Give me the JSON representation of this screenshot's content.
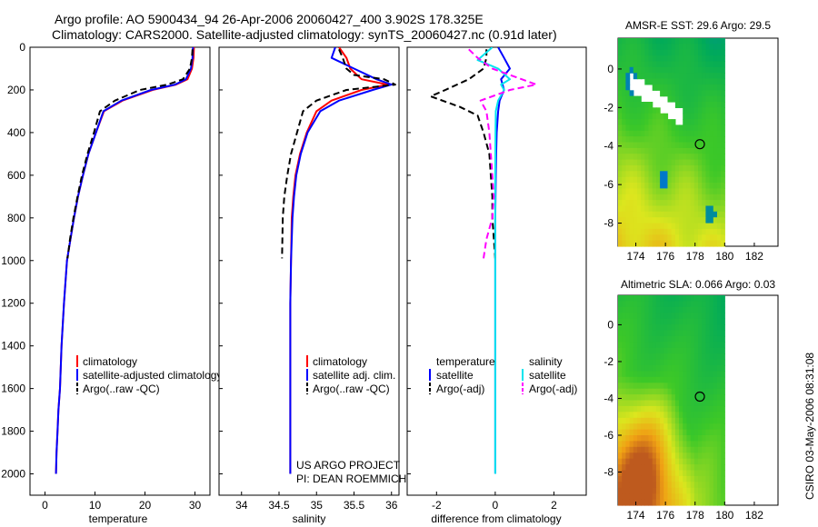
{
  "header": {
    "line1": "Argo profile: AO 5900434_94 26-Apr-2006 20060427_400 3.902S 178.325E",
    "line2": "Climatology: CARS2000. Satellite-adjusted climatology: synTS_20060427.nc (0.91d later)"
  },
  "chart_data": [
    {
      "type": "line",
      "name": "temperature-profile",
      "xlabel": "temperature",
      "ylabel": "",
      "xlim": [
        -3,
        33
      ],
      "ylim": [
        2100,
        0
      ],
      "xticks": [
        0,
        10,
        20,
        30
      ],
      "yticks": [
        0,
        200,
        400,
        600,
        800,
        1000,
        1200,
        1400,
        1600,
        1800,
        2000
      ],
      "legend": [
        "climatology",
        "satellite-adjusted climatology",
        "Argo(..raw -QC)"
      ],
      "series": [
        {
          "name": "climatology",
          "color": "#ff0000",
          "style": "solid",
          "x": [
            29.8,
            29.7,
            29.4,
            28.5,
            26.2,
            21.5,
            15.5,
            11.8,
            10.2,
            8.7,
            7.6,
            6.6,
            5.8,
            5.1,
            4.4,
            3.8,
            3.3,
            3.0,
            2.7,
            2.5,
            2.3,
            2.2
          ],
          "y": [
            0,
            50,
            100,
            150,
            175,
            200,
            250,
            300,
            400,
            500,
            600,
            700,
            800,
            900,
            1000,
            1200,
            1400,
            1600,
            1700,
            1800,
            1900,
            2000
          ]
        },
        {
          "name": "satellite-adjusted climatology",
          "color": "#0000ff",
          "style": "solid",
          "x": [
            29.6,
            29.5,
            29.2,
            28.2,
            26.0,
            21.2,
            15.3,
            11.7,
            10.2,
            8.7,
            7.6,
            6.6,
            5.8,
            5.1,
            4.4,
            3.8,
            3.3,
            3.0,
            2.7,
            2.5,
            2.3,
            2.2
          ],
          "y": [
            0,
            50,
            100,
            150,
            175,
            200,
            250,
            300,
            400,
            500,
            600,
            700,
            800,
            900,
            1000,
            1200,
            1400,
            1600,
            1700,
            1800,
            1900,
            2000
          ]
        },
        {
          "name": "Argo(..raw -QC)",
          "color": "#000000",
          "style": "dashed",
          "x": [
            29.5,
            29.4,
            29.0,
            27.6,
            24.5,
            19.0,
            14.0,
            11.0,
            9.8,
            8.5,
            7.4,
            6.5,
            5.7,
            5.0,
            4.5
          ],
          "y": [
            10,
            50,
            100,
            150,
            175,
            200,
            250,
            300,
            400,
            500,
            600,
            700,
            800,
            900,
            990
          ]
        }
      ]
    },
    {
      "type": "line",
      "name": "salinity-profile",
      "xlabel": "salinity",
      "ylabel": "",
      "xlim": [
        33.7,
        36.1
      ],
      "ylim": [
        2100,
        0
      ],
      "xticks": [
        34,
        34.5,
        35,
        35.5,
        36
      ],
      "xticklabels": [
        "34",
        "34.5",
        "35",
        "35.5",
        "36"
      ],
      "legend": [
        "climatology",
        "satellite adj. clim.",
        "Argo(..raw -QC)"
      ],
      "series": [
        {
          "name": "climatology",
          "color": "#ff0000",
          "style": "solid",
          "x": [
            35.3,
            35.4,
            35.45,
            35.6,
            35.95,
            35.6,
            35.2,
            35.0,
            34.87,
            34.78,
            34.72,
            34.69,
            34.67,
            34.66,
            34.65,
            34.65,
            34.65
          ],
          "y": [
            0,
            50,
            100,
            150,
            175,
            200,
            250,
            300,
            400,
            500,
            600,
            700,
            800,
            1000,
            1200,
            1600,
            2000
          ]
        },
        {
          "name": "satellite adj. clim.",
          "color": "#0000ff",
          "style": "solid",
          "x": [
            35.25,
            35.2,
            35.5,
            35.8,
            36.0,
            35.75,
            35.3,
            35.05,
            34.88,
            34.79,
            34.73,
            34.7,
            34.68,
            34.66,
            34.65,
            34.65,
            34.65
          ],
          "y": [
            0,
            50,
            100,
            150,
            175,
            200,
            250,
            300,
            400,
            500,
            600,
            700,
            800,
            1000,
            1200,
            1600,
            2000
          ]
        },
        {
          "name": "Argo(..raw -QC)",
          "color": "#000000",
          "style": "dashed",
          "x": [
            35.3,
            35.35,
            35.4,
            35.5,
            35.9,
            36.05,
            35.4,
            35.0,
            34.82,
            34.74,
            34.66,
            34.61,
            34.57,
            34.55,
            34.54
          ],
          "y": [
            10,
            50,
            100,
            130,
            150,
            175,
            200,
            250,
            300,
            400,
            500,
            600,
            700,
            800,
            990
          ]
        }
      ]
    },
    {
      "type": "line",
      "name": "difference-from-climatology",
      "xlabel": "difference from climatology",
      "ylabel": "",
      "xlim": [
        -3,
        3.1
      ],
      "ylim": [
        2100,
        0
      ],
      "xticks": [
        -2,
        0,
        2
      ],
      "legend_headers": [
        "temperature",
        "salinity"
      ],
      "legend": [
        "satellite",
        "Argo(-adj)",
        "satellite",
        "Argo(-adj)"
      ],
      "series": [
        {
          "name": "temperature satellite",
          "color": "#0000ff",
          "style": "solid",
          "x": [
            0.1,
            0.3,
            0.5,
            0.2,
            0.3,
            0.15,
            0.1,
            0.05,
            0.03,
            0.02,
            0.0,
            0.0,
            0.0,
            0.0
          ],
          "y": [
            0,
            50,
            100,
            150,
            200,
            250,
            300,
            400,
            500,
            600,
            800,
            1000,
            1500,
            2000
          ]
        },
        {
          "name": "temperature Argo(-adj)",
          "color": "#000000",
          "style": "dashed",
          "x": [
            -0.3,
            -0.3,
            -0.4,
            -0.9,
            -1.7,
            -2.2,
            -1.2,
            -0.6,
            -0.4,
            -0.2,
            -0.15,
            -0.1,
            -0.1,
            0.0
          ],
          "y": [
            10,
            50,
            100,
            150,
            200,
            230,
            280,
            320,
            400,
            500,
            600,
            700,
            800,
            990
          ]
        },
        {
          "name": "salinity satellite",
          "color": "#00e5ee",
          "style": "solid",
          "x": [
            -0.1,
            -0.6,
            0.1,
            0.5,
            0.2,
            0.3,
            0.1,
            0.02,
            0.01,
            0.0,
            0.0,
            0.0,
            0.0
          ],
          "y": [
            0,
            60,
            100,
            150,
            175,
            200,
            250,
            300,
            400,
            600,
            1000,
            1500,
            2000
          ]
        },
        {
          "name": "salinity Argo(-adj)",
          "color": "#ff00ff",
          "style": "dashed",
          "x": [
            -0.9,
            -0.6,
            -0.1,
            0.9,
            1.4,
            0.5,
            -0.5,
            -0.3,
            -0.2,
            -0.1,
            -0.05,
            -0.1,
            -0.3,
            -0.4
          ],
          "y": [
            10,
            50,
            100,
            150,
            175,
            200,
            250,
            300,
            400,
            600,
            700,
            800,
            900,
            990
          ]
        }
      ]
    },
    {
      "type": "heatmap",
      "name": "amsre-sst-map",
      "title": "AMSR-E SST: 29.6 Argo: 29.5",
      "xlim": [
        172.8,
        183.6
      ],
      "ylim": [
        -9.2,
        1.6
      ],
      "xticks": [
        174,
        176,
        178,
        180,
        182
      ],
      "yticks": [
        0,
        -2,
        -4,
        -6,
        -8
      ],
      "data_extent_lon": [
        172.8,
        180
      ],
      "argo_lon": 178.325,
      "argo_lat": -3.902
    },
    {
      "type": "heatmap",
      "name": "altimetric-sla-map",
      "title": "Altimetric SLA: 0.066 Argo: 0.03",
      "xlim": [
        172.8,
        183.6
      ],
      "ylim": [
        -9.8,
        1.6
      ],
      "xticks": [
        174,
        176,
        178,
        180,
        182
      ],
      "yticks": [
        0,
        -2,
        -4,
        -6,
        -8
      ],
      "data_extent_lon": [
        172.8,
        180
      ],
      "argo_lon": 178.325,
      "argo_lat": -3.902
    }
  ],
  "credits": {
    "project": "US ARGO PROJECT",
    "pi": "PI: DEAN ROEMMICH",
    "side_stamp": "CSIRO 03-May-2006 08:31:08"
  }
}
